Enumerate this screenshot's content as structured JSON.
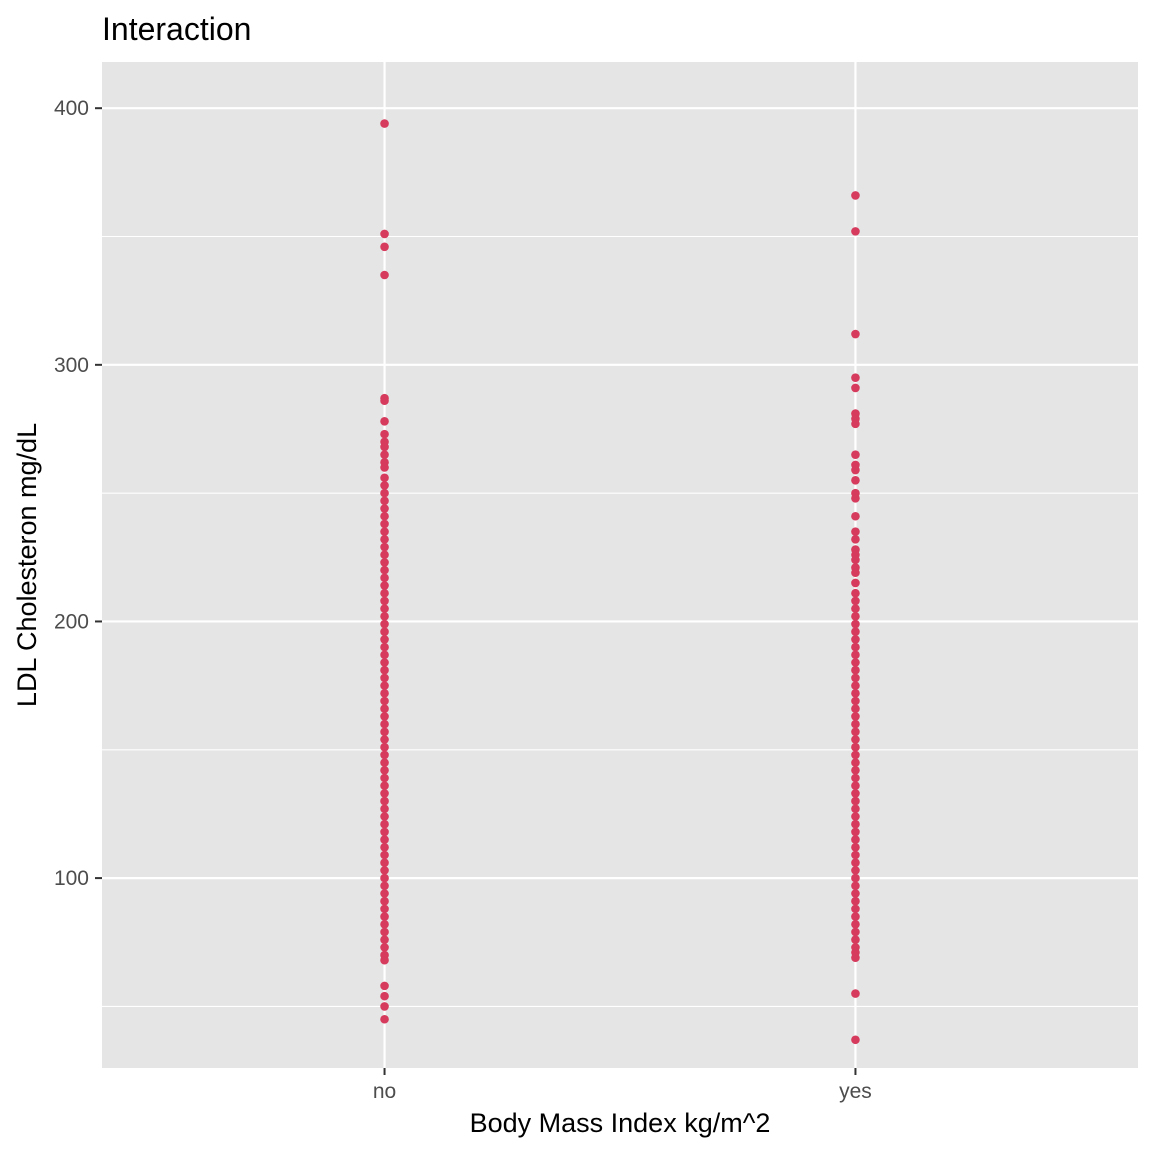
{
  "chart_data": {
    "type": "scatter",
    "title": "Interaction",
    "xlabel": "Body Mass Index kg/m^2",
    "ylabel": "LDL Cholesteron mg/dL",
    "categories": [
      "no",
      "yes"
    ],
    "ylim": [
      26,
      418
    ],
    "y_ticks": [
      100,
      200,
      300,
      400
    ],
    "y_minor_ticks": [
      50,
      150,
      250,
      350
    ],
    "grid": true,
    "legend": "none",
    "colors": {
      "point": "#d63a5c",
      "panel_background": "#e5e5e5",
      "grid_line": "#ffffff"
    },
    "series": [
      {
        "category": "no",
        "values": [
          394,
          351,
          346,
          335,
          287,
          286,
          278,
          273,
          270,
          268,
          265,
          262,
          260,
          256,
          253,
          250,
          247,
          244,
          241,
          238,
          235,
          232,
          229,
          226,
          223,
          220,
          217,
          214,
          211,
          208,
          205,
          202,
          199,
          196,
          193,
          190,
          187,
          184,
          181,
          178,
          175,
          172,
          169,
          166,
          163,
          160,
          157,
          154,
          151,
          148,
          145,
          142,
          139,
          136,
          133,
          130,
          127,
          124,
          121,
          118,
          115,
          112,
          109,
          106,
          103,
          100,
          97,
          94,
          91,
          88,
          85,
          82,
          79,
          76,
          73,
          70,
          68,
          58,
          54,
          50,
          45
        ]
      },
      {
        "category": "yes",
        "values": [
          366,
          352,
          312,
          295,
          291,
          281,
          279,
          277,
          265,
          261,
          259,
          255,
          250,
          248,
          241,
          235,
          232,
          228,
          226,
          224,
          221,
          219,
          215,
          211,
          208,
          205,
          202,
          199,
          196,
          193,
          190,
          187,
          184,
          181,
          178,
          175,
          172,
          169,
          166,
          163,
          160,
          157,
          154,
          151,
          148,
          145,
          142,
          139,
          136,
          133,
          130,
          127,
          124,
          121,
          118,
          115,
          112,
          109,
          106,
          103,
          100,
          97,
          94,
          91,
          88,
          85,
          82,
          79,
          76,
          73,
          71,
          69,
          55,
          37
        ]
      }
    ]
  }
}
